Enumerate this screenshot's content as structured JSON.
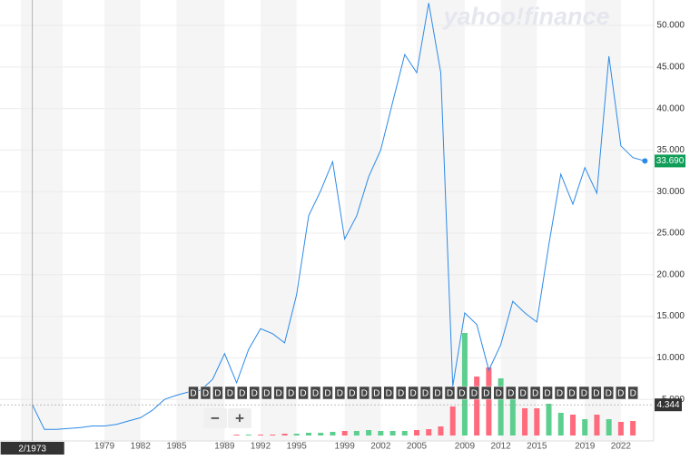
{
  "chart_data": {
    "type": "line",
    "logo": "yahoo!finance",
    "x": [
      1973,
      1974,
      1975,
      1976,
      1977,
      1978,
      1979,
      1980,
      1981,
      1982,
      1983,
      1984,
      1985,
      1986,
      1987,
      1988,
      1989,
      1990,
      1991,
      1992,
      1993,
      1994,
      1995,
      1996,
      1997,
      1998,
      1999,
      2000,
      2001,
      2002,
      2003,
      2004,
      2005,
      2006,
      2007,
      2008,
      2009,
      2010,
      2011,
      2012,
      2013,
      2014,
      2015,
      2016,
      2017,
      2018,
      2019,
      2020,
      2021,
      2022,
      2023,
      2024
    ],
    "series": [
      {
        "color": "#2c8ae8",
        "values": [
          4.344,
          1.4,
          1.4,
          1.5,
          1.6,
          1.8,
          1.8,
          2.0,
          2.4,
          2.8,
          3.7,
          5.0,
          5.5,
          5.9,
          6.1,
          7.4,
          10.5,
          7.0,
          11.0,
          13.5,
          12.9,
          11.8,
          17.6,
          27.1,
          30.1,
          33.6,
          24.3,
          27.1,
          31.8,
          35.0,
          40.8,
          46.5,
          44.3,
          52.7,
          44.3,
          6.6,
          15.4,
          14.0,
          8.5,
          11.6,
          16.8,
          15.4,
          14.3,
          23.6,
          32.1,
          28.5,
          32.9,
          29.8,
          46.3,
          35.5,
          34.1,
          33.69
        ]
      }
    ],
    "volume": {
      "values": [
        null,
        null,
        null,
        null,
        null,
        null,
        null,
        null,
        null,
        null,
        null,
        null,
        null,
        null,
        null,
        null,
        null,
        1,
        1,
        1,
        1,
        2,
        2,
        3,
        3,
        4,
        5,
        5,
        6,
        5,
        5,
        5,
        6,
        7,
        10,
        32,
        113,
        65,
        75,
        63,
        50,
        30,
        30,
        35,
        25,
        23,
        18,
        23,
        18,
        15,
        16,
        null
      ],
      "colors": [
        "#ff6b7d",
        "#ff6b7d",
        "#ff6b7d",
        "#ff6b7d",
        "#ff6b7d",
        "#ff6b7d",
        "#ff6b7d",
        "#ff6b7d",
        "#ff6b7d",
        "#ff6b7d",
        "#ff6b7d",
        "#ff6b7d",
        "#ff6b7d",
        "#ff6b7d",
        "#ff6b7d",
        "#ff6b7d",
        "#ff6b7d",
        "#ff6b7d",
        "#5ccf8e",
        "#ff6b7d",
        "#ff6b7d",
        "#ff6b7d",
        "#5ccf8e",
        "#5ccf8e",
        "#5ccf8e",
        "#5ccf8e",
        "#ff6b7d",
        "#5ccf8e",
        "#5ccf8e",
        "#5ccf8e",
        "#5ccf8e",
        "#5ccf8e",
        "#ff6b7d",
        "#ff6b7d",
        "#ff6b7d",
        "#ff6b7d",
        "#5ccf8e",
        "#ff6b7d",
        "#ff6b7d",
        "#5ccf8e",
        "#5ccf8e",
        "#ff6b7d",
        "#ff6b7d",
        "#5ccf8e",
        "#5ccf8e",
        "#ff6b7d",
        "#5ccf8e",
        "#ff6b7d",
        "#5ccf8e",
        "#ff6b7d",
        "#ff6b7d",
        "#ff6b7d"
      ],
      "ylim": [
        0,
        140
      ]
    },
    "xlim": [
      1970.3,
      2024.73
    ],
    "xticks": [
      1979,
      1982,
      1985,
      1989,
      1992,
      1995,
      1999,
      2002,
      2005,
      2009,
      2012,
      2015,
      2019,
      2022
    ],
    "ylim": [
      0,
      53.06
    ],
    "yticks": [
      {
        "value": 5,
        "label": "5.000"
      },
      {
        "value": 10,
        "label": "10.000"
      },
      {
        "value": 15,
        "label": "15.000"
      },
      {
        "value": 20,
        "label": "20.000"
      },
      {
        "value": 25,
        "label": "25.000"
      },
      {
        "value": 30,
        "label": "30.000"
      },
      {
        "value": 35,
        "label": "35.000"
      },
      {
        "value": 40,
        "label": "40.000"
      },
      {
        "value": 45,
        "label": "45.000"
      },
      {
        "value": 50,
        "label": "50.000"
      }
    ],
    "last_price": {
      "value": 33.69,
      "label": "33.690"
    },
    "crosshair": {
      "date": "2/1973",
      "value": 4.344
    },
    "dividends": [
      "D",
      "D",
      "D",
      "D",
      "D",
      "D",
      "D",
      "D",
      "D",
      "D",
      "D",
      "D",
      "D",
      "D",
      "D",
      "D",
      "D",
      "D",
      "D",
      "D",
      "D",
      "D",
      "D",
      "D",
      "D",
      "D",
      "D",
      "D",
      "D",
      "D",
      "D",
      "D",
      "D",
      "D",
      "D",
      "D",
      "D"
    ],
    "zoom": [
      "−",
      "+"
    ]
  }
}
